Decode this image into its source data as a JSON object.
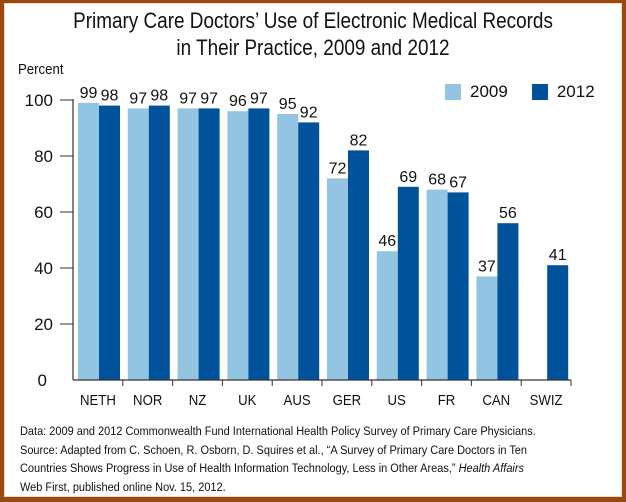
{
  "colors": {
    "series_2009": "#93c4e1",
    "series_2012": "#00529b",
    "frame": "#9a4a10",
    "axis": "#333333"
  },
  "chart_data": {
    "type": "bar",
    "title": "Primary Care Doctors’ Use of Electronic Medical Records in Their Practice, 2009 and 2012",
    "title_lines": [
      "Primary Care Doctors’ Use of Electronic Medical Records",
      "in Their Practice, 2009 and 2012"
    ],
    "xlabel": "",
    "ylabel": "Percent",
    "ylim": [
      0,
      100
    ],
    "yticks": [
      0,
      20,
      40,
      60,
      80,
      100
    ],
    "grid": false,
    "legend_position": "top-right",
    "categories": [
      "NETH",
      "NOR",
      "NZ",
      "UK",
      "AUS",
      "GER",
      "US",
      "FR",
      "CAN",
      "SWIZ"
    ],
    "series": [
      {
        "name": "2009",
        "values": [
          99,
          97,
          97,
          96,
          95,
          72,
          46,
          68,
          37,
          null
        ]
      },
      {
        "name": "2012",
        "values": [
          98,
          98,
          97,
          97,
          92,
          82,
          69,
          67,
          56,
          41
        ]
      }
    ]
  },
  "footer": {
    "line1": "Data: 2009 and 2012 Commonwealth Fund International Health Policy Survey of Primary Care Physicians.",
    "line2": "Source: Adapted from C. Schoen, R. Osborn, D. Squires et al., “A Survey of Primary Care Doctors in Ten",
    "line3_plain": "Countries Shows Progress in Use of Health Information Technology, Less in Other Areas,” ",
    "line3_italic": "Health Affairs",
    "line4": "Web First, published online Nov. 15, 2012."
  }
}
